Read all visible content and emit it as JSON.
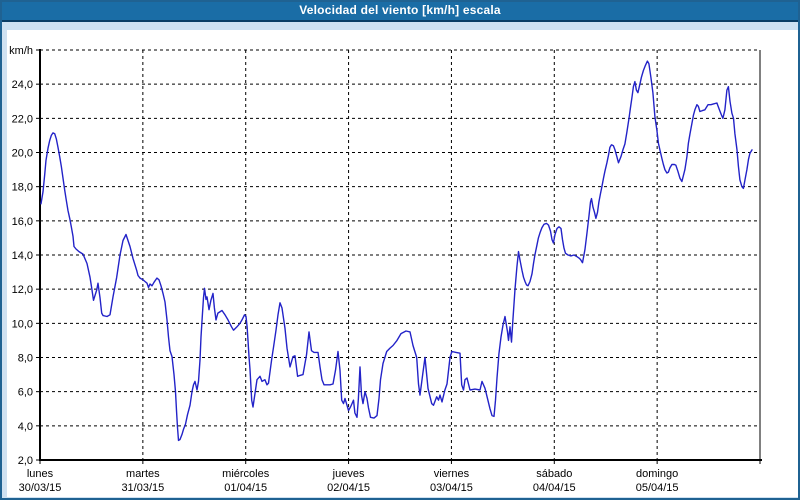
{
  "window": {
    "title": "Velocidad del viento [km/h] escala"
  },
  "colors": {
    "titlebar_bg": "#1a6da6",
    "titlebar_border": "#0b3d64",
    "frame_bg": "#cfe1f1",
    "frame_border": "#1f6292",
    "panel_bg": "#ffffff",
    "line": "#2323c8",
    "grid": "#000000",
    "text": "#000000"
  },
  "chart_data": {
    "type": "line",
    "title": "Velocidad del viento [km/h] escala",
    "y_unit_label": "km/h",
    "ylim": [
      2,
      26
    ],
    "xlim": [
      0,
      7
    ],
    "grid": "dashed",
    "legend": "none",
    "y_ticks": [
      {
        "v": 2,
        "label": "2,0"
      },
      {
        "v": 4,
        "label": "4,0"
      },
      {
        "v": 6,
        "label": "6,0"
      },
      {
        "v": 8,
        "label": "8,0"
      },
      {
        "v": 10,
        "label": "10,0"
      },
      {
        "v": 12,
        "label": "12,0"
      },
      {
        "v": 14,
        "label": "14,0"
      },
      {
        "v": 16,
        "label": "16,0"
      },
      {
        "v": 18,
        "label": "18,0"
      },
      {
        "v": 20,
        "label": "20,0"
      },
      {
        "v": 22,
        "label": "22,0"
      },
      {
        "v": 24,
        "label": "24,0"
      },
      {
        "v": 26,
        "label": "km/h"
      }
    ],
    "x_categories": [
      {
        "name": "lunes",
        "date": "30/03/15"
      },
      {
        "name": "martes",
        "date": "31/03/15"
      },
      {
        "name": "miércoles",
        "date": "01/04/15"
      },
      {
        "name": "jueves",
        "date": "02/04/15"
      },
      {
        "name": "viernes",
        "date": "03/04/15"
      },
      {
        "name": "sábado",
        "date": "04/04/15"
      },
      {
        "name": "domingo",
        "date": "05/04/15"
      }
    ],
    "points": [
      [
        0.01,
        17.0
      ],
      [
        0.029,
        17.7
      ],
      [
        0.046,
        18.7
      ],
      [
        0.058,
        19.55
      ],
      [
        0.078,
        20.25
      ],
      [
        0.094,
        20.7
      ],
      [
        0.11,
        21.0
      ],
      [
        0.126,
        21.15
      ],
      [
        0.143,
        21.1
      ],
      [
        0.158,
        20.8
      ],
      [
        0.175,
        20.3
      ],
      [
        0.192,
        19.75
      ],
      [
        0.207,
        19.2
      ],
      [
        0.224,
        18.5
      ],
      [
        0.24,
        17.8
      ],
      [
        0.256,
        17.2
      ],
      [
        0.272,
        16.6
      ],
      [
        0.289,
        16.15
      ],
      [
        0.304,
        15.65
      ],
      [
        0.321,
        15.1
      ],
      [
        0.331,
        14.5
      ],
      [
        0.35,
        14.35
      ],
      [
        0.379,
        14.2
      ],
      [
        0.418,
        14.05
      ],
      [
        0.457,
        13.5
      ],
      [
        0.486,
        12.7
      ],
      [
        0.506,
        11.95
      ],
      [
        0.52,
        11.35
      ],
      [
        0.551,
        11.95
      ],
      [
        0.564,
        12.35
      ],
      [
        0.583,
        11.5
      ],
      [
        0.6,
        10.6
      ],
      [
        0.613,
        10.45
      ],
      [
        0.651,
        10.4
      ],
      [
        0.681,
        10.5
      ],
      [
        0.71,
        11.55
      ],
      [
        0.746,
        12.7
      ],
      [
        0.778,
        14.0
      ],
      [
        0.807,
        14.85
      ],
      [
        0.836,
        15.2
      ],
      [
        0.875,
        14.5
      ],
      [
        0.904,
        13.8
      ],
      [
        0.94,
        13.1
      ],
      [
        0.953,
        12.8
      ],
      [
        0.972,
        12.65
      ],
      [
        1.001,
        12.55
      ],
      [
        1.021,
        12.45
      ],
      [
        1.04,
        12.35
      ],
      [
        1.055,
        12.1
      ],
      [
        1.069,
        12.3
      ],
      [
        1.089,
        12.2
      ],
      [
        1.108,
        12.4
      ],
      [
        1.137,
        12.65
      ],
      [
        1.157,
        12.55
      ],
      [
        1.176,
        12.2
      ],
      [
        1.196,
        11.75
      ],
      [
        1.215,
        11.25
      ],
      [
        1.235,
        10.2
      ],
      [
        1.249,
        9.2
      ],
      [
        1.264,
        8.4
      ],
      [
        1.283,
        8.05
      ],
      [
        1.303,
        7.0
      ],
      [
        1.317,
        6.0
      ],
      [
        1.327,
        4.9
      ],
      [
        1.337,
        3.9
      ],
      [
        1.347,
        3.15
      ],
      [
        1.361,
        3.2
      ],
      [
        1.381,
        3.5
      ],
      [
        1.395,
        3.8
      ],
      [
        1.415,
        4.1
      ],
      [
        1.434,
        4.65
      ],
      [
        1.458,
        5.2
      ],
      [
        1.478,
        6.0
      ],
      [
        1.492,
        6.4
      ],
      [
        1.507,
        6.6
      ],
      [
        1.526,
        6.1
      ],
      [
        1.541,
        6.6
      ],
      [
        1.556,
        7.85
      ],
      [
        1.565,
        9.2
      ],
      [
        1.58,
        10.6
      ],
      [
        1.59,
        11.5
      ],
      [
        1.599,
        12.05
      ],
      [
        1.614,
        11.4
      ],
      [
        1.624,
        11.55
      ],
      [
        1.643,
        10.8
      ],
      [
        1.662,
        11.35
      ],
      [
        1.682,
        11.75
      ],
      [
        1.696,
        10.9
      ],
      [
        1.711,
        10.2
      ],
      [
        1.73,
        10.6
      ],
      [
        1.769,
        10.75
      ],
      [
        1.799,
        10.5
      ],
      [
        1.828,
        10.2
      ],
      [
        1.862,
        9.8
      ],
      [
        1.881,
        9.6
      ],
      [
        1.915,
        9.8
      ],
      [
        1.944,
        10.0
      ],
      [
        1.964,
        10.2
      ],
      [
        1.988,
        10.5
      ],
      [
        2.003,
        10.4
      ],
      [
        2.013,
        9.8
      ],
      [
        2.022,
        9.0
      ],
      [
        2.032,
        8.05
      ],
      [
        2.042,
        7.3
      ],
      [
        2.058,
        5.5
      ],
      [
        2.071,
        5.1
      ],
      [
        2.09,
        5.9
      ],
      [
        2.11,
        6.7
      ],
      [
        2.139,
        6.9
      ],
      [
        2.158,
        6.6
      ],
      [
        2.187,
        6.7
      ],
      [
        2.207,
        6.4
      ],
      [
        2.222,
        6.5
      ],
      [
        2.253,
        7.9
      ],
      [
        2.27,
        8.6
      ],
      [
        2.294,
        9.6
      ],
      [
        2.314,
        10.5
      ],
      [
        2.333,
        11.2
      ],
      [
        2.353,
        10.9
      ],
      [
        2.382,
        9.7
      ],
      [
        2.401,
        8.55
      ],
      [
        2.416,
        8.0
      ],
      [
        2.431,
        7.45
      ],
      [
        2.46,
        8.05
      ],
      [
        2.479,
        8.1
      ],
      [
        2.504,
        6.9
      ],
      [
        2.528,
        6.95
      ],
      [
        2.557,
        7.0
      ],
      [
        2.591,
        8.15
      ],
      [
        2.615,
        9.5
      ],
      [
        2.64,
        8.4
      ],
      [
        2.664,
        8.3
      ],
      [
        2.703,
        8.3
      ],
      [
        2.722,
        7.45
      ],
      [
        2.742,
        6.7
      ],
      [
        2.761,
        6.4
      ],
      [
        2.819,
        6.4
      ],
      [
        2.849,
        6.45
      ],
      [
        2.873,
        7.25
      ],
      [
        2.897,
        8.35
      ],
      [
        2.917,
        7.25
      ],
      [
        2.933,
        5.5
      ],
      [
        2.951,
        5.3
      ],
      [
        2.965,
        5.6
      ],
      [
        2.985,
        5.2
      ],
      [
        2.999,
        4.9
      ],
      [
        3.019,
        5.1
      ],
      [
        3.033,
        5.3
      ],
      [
        3.048,
        5.5
      ],
      [
        3.062,
        4.75
      ],
      [
        3.082,
        4.5
      ],
      [
        3.096,
        5.6
      ],
      [
        3.111,
        7.45
      ],
      [
        3.126,
        5.8
      ],
      [
        3.14,
        5.3
      ],
      [
        3.16,
        6.0
      ],
      [
        3.179,
        5.6
      ],
      [
        3.194,
        5.05
      ],
      [
        3.213,
        4.5
      ],
      [
        3.247,
        4.45
      ],
      [
        3.276,
        4.6
      ],
      [
        3.296,
        5.6
      ],
      [
        3.31,
        6.7
      ],
      [
        3.335,
        7.65
      ],
      [
        3.371,
        8.35
      ],
      [
        3.403,
        8.55
      ],
      [
        3.432,
        8.7
      ],
      [
        3.471,
        9.0
      ],
      [
        3.51,
        9.4
      ],
      [
        3.558,
        9.55
      ],
      [
        3.597,
        9.5
      ],
      [
        3.626,
        8.7
      ],
      [
        3.662,
        8.0
      ],
      [
        3.68,
        6.45
      ],
      [
        3.694,
        5.8
      ],
      [
        3.723,
        7.1
      ],
      [
        3.743,
        8.0
      ],
      [
        3.772,
        6.2
      ],
      [
        3.808,
        5.3
      ],
      [
        3.826,
        5.2
      ],
      [
        3.857,
        5.7
      ],
      [
        3.874,
        5.5
      ],
      [
        3.889,
        5.8
      ],
      [
        3.908,
        5.4
      ],
      [
        3.937,
        6.1
      ],
      [
        3.957,
        6.45
      ],
      [
        3.986,
        8.0
      ],
      [
        4.005,
        8.35
      ],
      [
        4.044,
        8.3
      ],
      [
        4.083,
        8.25
      ],
      [
        4.1,
        6.4
      ],
      [
        4.117,
        6.1
      ],
      [
        4.132,
        6.7
      ],
      [
        4.151,
        6.8
      ],
      [
        4.181,
        6.1
      ],
      [
        4.229,
        6.15
      ],
      [
        4.278,
        6.1
      ],
      [
        4.297,
        6.6
      ],
      [
        4.326,
        6.2
      ],
      [
        4.355,
        5.5
      ],
      [
        4.375,
        5.0
      ],
      [
        4.394,
        4.6
      ],
      [
        4.414,
        4.55
      ],
      [
        4.428,
        5.5
      ],
      [
        4.443,
        6.8
      ],
      [
        4.462,
        8.2
      ],
      [
        4.482,
        9.2
      ],
      [
        4.501,
        9.9
      ],
      [
        4.521,
        10.4
      ],
      [
        4.545,
        9.5
      ],
      [
        4.555,
        9.0
      ],
      [
        4.569,
        9.8
      ],
      [
        4.584,
        8.9
      ],
      [
        4.598,
        10.2
      ],
      [
        4.618,
        12.0
      ],
      [
        4.637,
        13.3
      ],
      [
        4.652,
        14.2
      ],
      [
        4.667,
        13.7
      ],
      [
        4.686,
        13.1
      ],
      [
        4.701,
        12.7
      ],
      [
        4.715,
        12.45
      ],
      [
        4.73,
        12.25
      ],
      [
        4.744,
        12.2
      ],
      [
        4.764,
        12.45
      ],
      [
        4.783,
        12.9
      ],
      [
        4.798,
        13.5
      ],
      [
        4.812,
        14.0
      ],
      [
        4.832,
        14.6
      ],
      [
        4.846,
        15.0
      ],
      [
        4.861,
        15.3
      ],
      [
        4.88,
        15.6
      ],
      [
        4.9,
        15.8
      ],
      [
        4.924,
        15.85
      ],
      [
        4.944,
        15.75
      ],
      [
        4.963,
        15.4
      ],
      [
        4.978,
        14.9
      ],
      [
        4.991,
        14.7
      ],
      [
        5.007,
        15.2
      ],
      [
        5.026,
        15.55
      ],
      [
        5.046,
        15.65
      ],
      [
        5.065,
        15.55
      ],
      [
        5.08,
        14.9
      ],
      [
        5.094,
        14.4
      ],
      [
        5.109,
        14.1
      ],
      [
        5.133,
        14.0
      ],
      [
        5.162,
        13.95
      ],
      [
        5.192,
        14.0
      ],
      [
        5.221,
        13.9
      ],
      [
        5.245,
        13.8
      ],
      [
        5.259,
        13.7
      ],
      [
        5.274,
        13.55
      ],
      [
        5.298,
        14.3
      ],
      [
        5.318,
        15.3
      ],
      [
        5.337,
        16.25
      ],
      [
        5.352,
        17.1
      ],
      [
        5.362,
        17.3
      ],
      [
        5.376,
        16.8
      ],
      [
        5.391,
        16.5
      ],
      [
        5.405,
        16.15
      ],
      [
        5.42,
        16.5
      ],
      [
        5.434,
        17.1
      ],
      [
        5.449,
        17.6
      ],
      [
        5.463,
        18.0
      ],
      [
        5.478,
        18.5
      ],
      [
        5.492,
        18.9
      ],
      [
        5.512,
        19.4
      ],
      [
        5.527,
        19.85
      ],
      [
        5.541,
        20.3
      ],
      [
        5.556,
        20.45
      ],
      [
        5.575,
        20.4
      ],
      [
        5.59,
        20.15
      ],
      [
        5.609,
        19.75
      ],
      [
        5.624,
        19.4
      ],
      [
        5.648,
        19.75
      ],
      [
        5.667,
        20.15
      ],
      [
        5.687,
        20.5
      ],
      [
        5.706,
        21.2
      ],
      [
        5.726,
        22.0
      ],
      [
        5.74,
        22.6
      ],
      [
        5.755,
        23.2
      ],
      [
        5.769,
        23.85
      ],
      [
        5.784,
        24.15
      ],
      [
        5.798,
        23.65
      ],
      [
        5.813,
        23.5
      ],
      [
        5.832,
        24.0
      ],
      [
        5.847,
        24.4
      ],
      [
        5.866,
        24.8
      ],
      [
        5.886,
        25.1
      ],
      [
        5.905,
        25.35
      ],
      [
        5.92,
        25.2
      ],
      [
        5.939,
        24.4
      ],
      [
        5.959,
        23.5
      ],
      [
        5.978,
        22.1
      ],
      [
        5.998,
        21.3
      ],
      [
        6.012,
        20.55
      ],
      [
        6.027,
        20.15
      ],
      [
        6.046,
        19.65
      ],
      [
        6.061,
        19.3
      ],
      [
        6.075,
        19.0
      ],
      [
        6.095,
        18.8
      ],
      [
        6.109,
        18.85
      ],
      [
        6.124,
        19.1
      ],
      [
        6.143,
        19.3
      ],
      [
        6.168,
        19.3
      ],
      [
        6.182,
        19.25
      ],
      [
        6.202,
        18.9
      ],
      [
        6.221,
        18.5
      ],
      [
        6.241,
        18.3
      ],
      [
        6.27,
        19.0
      ],
      [
        6.289,
        19.75
      ],
      [
        6.304,
        20.55
      ],
      [
        6.319,
        21.1
      ],
      [
        6.338,
        21.7
      ],
      [
        6.353,
        22.2
      ],
      [
        6.367,
        22.5
      ],
      [
        6.387,
        22.8
      ],
      [
        6.401,
        22.7
      ],
      [
        6.416,
        22.4
      ],
      [
        6.44,
        22.45
      ],
      [
        6.464,
        22.5
      ],
      [
        6.494,
        22.8
      ],
      [
        6.523,
        22.8
      ],
      [
        6.552,
        22.85
      ],
      [
        6.581,
        22.9
      ],
      [
        6.605,
        22.5
      ],
      [
        6.625,
        22.2
      ],
      [
        6.639,
        22.0
      ],
      [
        6.659,
        22.5
      ],
      [
        6.678,
        23.65
      ],
      [
        6.693,
        23.85
      ],
      [
        6.708,
        23.0
      ],
      [
        6.727,
        22.3
      ],
      [
        6.742,
        22.0
      ],
      [
        6.756,
        21.1
      ],
      [
        6.776,
        20.15
      ],
      [
        6.79,
        19.2
      ],
      [
        6.805,
        18.4
      ],
      [
        6.824,
        18.0
      ],
      [
        6.839,
        17.9
      ],
      [
        6.854,
        18.4
      ],
      [
        6.873,
        19.0
      ],
      [
        6.888,
        19.6
      ],
      [
        6.902,
        19.95
      ],
      [
        6.922,
        20.15
      ]
    ]
  }
}
